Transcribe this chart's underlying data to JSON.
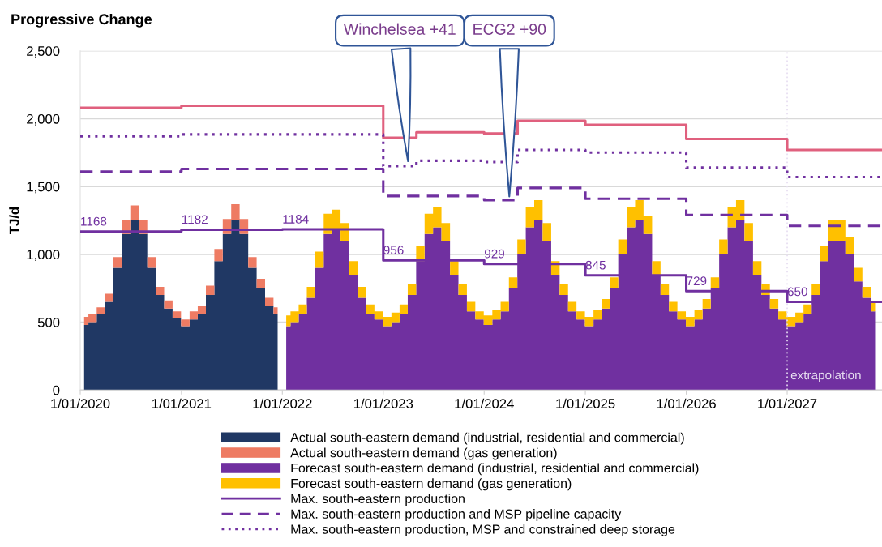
{
  "chart_data": {
    "type": "area",
    "title": "Progressive Change",
    "ylabel": "TJ/d",
    "stacked": true,
    "x": [
      "2020-01-15",
      "2020-02-15",
      "2020-03-15",
      "2020-04-15",
      "2020-05-15",
      "2020-06-15",
      "2020-07-15",
      "2020-08-15",
      "2020-09-15",
      "2020-10-15",
      "2020-11-15",
      "2020-12-15",
      "2021-01-15",
      "2021-02-15",
      "2021-03-15",
      "2021-04-15",
      "2021-05-15",
      "2021-06-15",
      "2021-07-15",
      "2021-08-15",
      "2021-09-15",
      "2021-10-15",
      "2021-11-15",
      "2021-12-15",
      "2022-01-15",
      "2022-02-15",
      "2022-03-15",
      "2022-04-15",
      "2022-05-15",
      "2022-06-15",
      "2022-07-15",
      "2022-08-15",
      "2022-09-15",
      "2022-10-15",
      "2022-11-15",
      "2022-12-15",
      "2023-01-15",
      "2023-02-15",
      "2023-03-15",
      "2023-04-15",
      "2023-05-15",
      "2023-06-15",
      "2023-07-15",
      "2023-08-15",
      "2023-09-15",
      "2023-10-15",
      "2023-11-15",
      "2023-12-15",
      "2024-01-15",
      "2024-02-15",
      "2024-03-15",
      "2024-04-15",
      "2024-05-15",
      "2024-06-15",
      "2024-07-15",
      "2024-08-15",
      "2024-09-15",
      "2024-10-15",
      "2024-11-15",
      "2024-12-15",
      "2025-01-15",
      "2025-02-15",
      "2025-03-15",
      "2025-04-15",
      "2025-05-15",
      "2025-06-15",
      "2025-07-15",
      "2025-08-15",
      "2025-09-15",
      "2025-10-15",
      "2025-11-15",
      "2025-12-15",
      "2026-01-15",
      "2026-02-15",
      "2026-03-15",
      "2026-04-15",
      "2026-05-15",
      "2026-06-15",
      "2026-07-15",
      "2026-08-15",
      "2026-09-15",
      "2026-10-15",
      "2026-11-15",
      "2026-12-15",
      "2027-01-15",
      "2027-02-15",
      "2027-03-15",
      "2027-04-15",
      "2027-05-15",
      "2027-06-15",
      "2027-07-15",
      "2027-08-15",
      "2027-09-15",
      "2027-10-15",
      "2027-11-15"
    ],
    "series": [
      {
        "name": "Actual south-eastern demand (industrial, residential and commercial)",
        "color": "#203864",
        "values": [
          480,
          500,
          560,
          650,
          900,
          1150,
          1250,
          1150,
          900,
          700,
          600,
          530,
          470,
          520,
          560,
          700,
          950,
          1150,
          1250,
          1150,
          900,
          750,
          620,
          560,
          null,
          null,
          null,
          null,
          null,
          null,
          null,
          null,
          null,
          null,
          null,
          null,
          null,
          null,
          null,
          null,
          null,
          null,
          null,
          null,
          null,
          null,
          null,
          null,
          null,
          null,
          null,
          null,
          null,
          null,
          null,
          null,
          null,
          null,
          null,
          null,
          null,
          null,
          null,
          null,
          null,
          null,
          null,
          null,
          null,
          null,
          null,
          null,
          null,
          null,
          null,
          null,
          null,
          null,
          null,
          null,
          null,
          null,
          null,
          null,
          null,
          null,
          null,
          null,
          null,
          null,
          null,
          null,
          null,
          null,
          null
        ]
      },
      {
        "name": "Actual south-eastern demand (gas generation)",
        "color": "#ee7b63",
        "values": [
          60,
          60,
          50,
          60,
          80,
          100,
          110,
          100,
          80,
          60,
          60,
          50,
          50,
          60,
          60,
          70,
          90,
          110,
          120,
          110,
          80,
          70,
          60,
          50,
          null,
          null,
          null,
          null,
          null,
          null,
          null,
          null,
          null,
          null,
          null,
          null,
          null,
          null,
          null,
          null,
          null,
          null,
          null,
          null,
          null,
          null,
          null,
          null,
          null,
          null,
          null,
          null,
          null,
          null,
          null,
          null,
          null,
          null,
          null,
          null,
          null,
          null,
          null,
          null,
          null,
          null,
          null,
          null,
          null,
          null,
          null,
          null,
          null,
          null,
          null,
          null,
          null,
          null,
          null,
          null,
          null,
          null,
          null,
          null,
          null,
          null,
          null,
          null,
          null,
          null,
          null,
          null,
          null,
          null,
          null
        ]
      },
      {
        "name": "Forecast south-eastern demand (industrial, residential and commercial)",
        "color": "#7030a0",
        "values": [
          null,
          null,
          null,
          null,
          null,
          null,
          null,
          null,
          null,
          null,
          null,
          null,
          null,
          null,
          null,
          null,
          null,
          null,
          null,
          null,
          null,
          null,
          null,
          null,
          470,
          500,
          560,
          680,
          900,
          1150,
          1180,
          1100,
          850,
          680,
          560,
          520,
          470,
          500,
          560,
          700,
          950,
          1150,
          1200,
          1100,
          850,
          700,
          580,
          520,
          480,
          520,
          580,
          750,
          1000,
          1200,
          1250,
          1100,
          850,
          700,
          580,
          520,
          470,
          520,
          600,
          750,
          1000,
          1200,
          1250,
          1150,
          850,
          700,
          580,
          520,
          470,
          520,
          600,
          750,
          1000,
          1200,
          1250,
          1100,
          850,
          700,
          600,
          520,
          470,
          500,
          560,
          700,
          950,
          1100,
          1100,
          1000,
          800,
          680,
          580
        ]
      },
      {
        "name": "Forecast south-eastern demand (gas generation)",
        "color": "#ffc000",
        "values": [
          null,
          null,
          null,
          null,
          null,
          null,
          null,
          null,
          null,
          null,
          null,
          null,
          null,
          null,
          null,
          null,
          null,
          null,
          null,
          null,
          null,
          null,
          null,
          null,
          80,
          80,
          70,
          80,
          120,
          150,
          150,
          130,
          100,
          80,
          70,
          60,
          70,
          70,
          70,
          80,
          110,
          150,
          150,
          130,
          100,
          80,
          70,
          60,
          70,
          70,
          70,
          80,
          110,
          150,
          150,
          130,
          100,
          80,
          70,
          60,
          70,
          70,
          70,
          80,
          110,
          150,
          150,
          130,
          100,
          80,
          70,
          60,
          70,
          70,
          70,
          80,
          110,
          150,
          150,
          130,
          100,
          80,
          70,
          60,
          70,
          70,
          70,
          80,
          110,
          150,
          150,
          130,
          100,
          80,
          70
        ]
      },
      {
        "type": "step",
        "color": "#e0607e",
        "line_style": "solid",
        "x": [
          "2020-01-01",
          "2021-01-01",
          "2023-01-01",
          "2023-05-01",
          "2024-01-01",
          "2024-05-01",
          "2025-01-01",
          "2026-01-01",
          "2027-01-01",
          "2027-12-10"
        ],
        "values": [
          2080,
          2095,
          1860,
          1900,
          1890,
          1985,
          1955,
          1850,
          1770,
          1770
        ]
      },
      {
        "type": "step",
        "name": "Max. south-eastern production",
        "color": "#7030a0",
        "line_style": "solid",
        "x": [
          "2020-01-01",
          "2021-01-01",
          "2022-01-01",
          "2023-01-01",
          "2024-01-01",
          "2025-01-01",
          "2026-01-01",
          "2027-01-01",
          "2027-12-10"
        ],
        "values": [
          1168,
          1182,
          1184,
          956,
          929,
          845,
          729,
          650,
          650
        ],
        "value_labels": [
          "1168",
          "1182",
          "1184",
          "956",
          "929",
          "845",
          "729",
          "650",
          null
        ]
      },
      {
        "type": "step",
        "name": "Max. south-eastern production and MSP pipeline capacity",
        "color": "#7030a0",
        "line_style": "dashed",
        "x": [
          "2020-01-01",
          "2021-01-01",
          "2023-01-01",
          "2024-01-01",
          "2024-05-01",
          "2025-01-01",
          "2026-01-01",
          "2027-01-01",
          "2027-12-10"
        ],
        "values": [
          1610,
          1630,
          1430,
          1400,
          1490,
          1410,
          1290,
          1210,
          1210
        ]
      },
      {
        "type": "step",
        "name": "Max. south-eastern production, MSP and constrained deep storage",
        "color": "#7030a0",
        "line_style": "dotted",
        "x": [
          "2020-01-01",
          "2021-01-01",
          "2023-01-01",
          "2023-05-01",
          "2024-01-01",
          "2024-05-01",
          "2025-01-01",
          "2026-01-01",
          "2027-01-01",
          "2027-12-10"
        ],
        "values": [
          1870,
          1884,
          1650,
          1690,
          1680,
          1770,
          1750,
          1640,
          1570,
          1570
        ]
      }
    ],
    "xlim": [
      "2020-01-01",
      "2027-12-10"
    ],
    "xticks": [
      {
        "value": "2020-01-01",
        "label": "1/01/2020"
      },
      {
        "value": "2021-01-01",
        "label": "1/01/2021"
      },
      {
        "value": "2022-01-01",
        "label": "1/01/2022"
      },
      {
        "value": "2023-01-01",
        "label": "1/01/2023"
      },
      {
        "value": "2024-01-01",
        "label": "1/01/2024"
      },
      {
        "value": "2025-01-01",
        "label": "1/01/2025"
      },
      {
        "value": "2026-01-01",
        "label": "1/01/2026"
      },
      {
        "value": "2027-01-01",
        "label": "1/01/2027"
      }
    ],
    "ylim": [
      0,
      2500
    ],
    "yticks": [
      0,
      500,
      {
        "value": 1000,
        "label": "1,000"
      },
      {
        "value": 1500,
        "label": "1,500"
      },
      {
        "value": 2000,
        "label": "2,000"
      },
      {
        "value": 2500,
        "label": "2,500"
      }
    ],
    "ref_lines": [
      {
        "axis": "x",
        "value": "2027-01-01",
        "label": "extrapolation",
        "color": "#e6dcf0",
        "line_style": "dotted"
      }
    ],
    "annotations": [
      {
        "text": "Winchelsea +41",
        "x": "2023-04-01",
        "y": 1670
      },
      {
        "text": "ECG2 +90",
        "x": "2024-04-01",
        "y": 1410
      }
    ],
    "grid": "y",
    "legend": "bottom",
    "marker": "none"
  }
}
